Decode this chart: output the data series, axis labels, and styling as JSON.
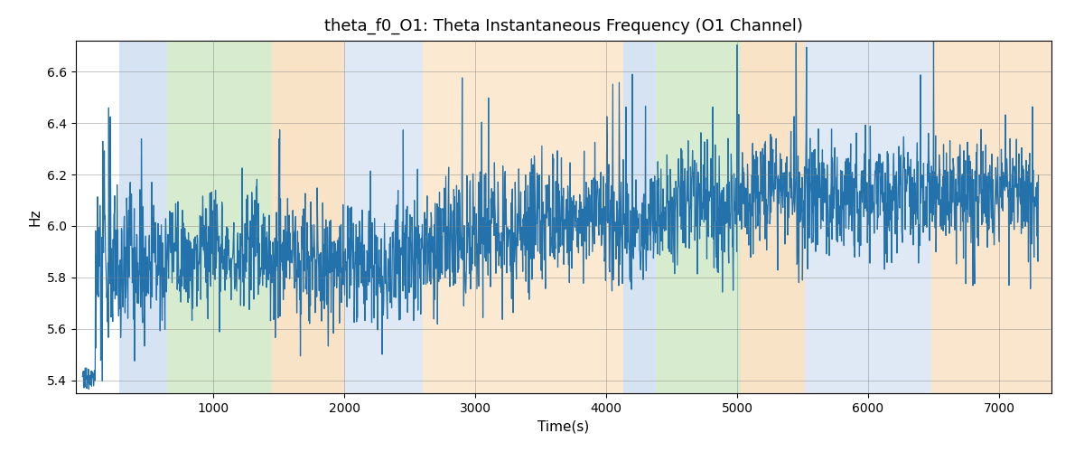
{
  "title": "theta_f0_O1: Theta Instantaneous Frequency (O1 Channel)",
  "xlabel": "Time(s)",
  "ylabel": "Hz",
  "xlim": [
    -50,
    7400
  ],
  "ylim": [
    5.35,
    6.72
  ],
  "line_color": "#2372ac",
  "line_width": 0.9,
  "background_color": "#ffffff",
  "grid": true,
  "figsize": [
    12,
    5
  ],
  "dpi": 100,
  "seed": 42,
  "n_points": 2400,
  "mean_freq": 6.0,
  "title_fontsize": 13,
  "label_fontsize": 11,
  "regions": [
    {
      "xmin": 280,
      "xmax": 650,
      "color": "#aec9e8",
      "alpha": 0.5
    },
    {
      "xmin": 650,
      "xmax": 1450,
      "color": "#b0d9a0",
      "alpha": 0.5
    },
    {
      "xmin": 1450,
      "xmax": 2000,
      "color": "#f5c990",
      "alpha": 0.5
    },
    {
      "xmin": 2000,
      "xmax": 2600,
      "color": "#aec9e8",
      "alpha": 0.4
    },
    {
      "xmin": 2600,
      "xmax": 4130,
      "color": "#f5c990",
      "alpha": 0.4
    },
    {
      "xmin": 4130,
      "xmax": 4380,
      "color": "#aec9e8",
      "alpha": 0.5
    },
    {
      "xmin": 4380,
      "xmax": 5030,
      "color": "#b0d9a0",
      "alpha": 0.5
    },
    {
      "xmin": 5030,
      "xmax": 5520,
      "color": "#f5c990",
      "alpha": 0.5
    },
    {
      "xmin": 5520,
      "xmax": 6480,
      "color": "#aec9e8",
      "alpha": 0.4
    },
    {
      "xmin": 6480,
      "xmax": 7400,
      "color": "#f5c990",
      "alpha": 0.45
    }
  ],
  "xticks": [
    1000,
    2000,
    3000,
    4000,
    5000,
    6000,
    7000
  ],
  "yticks": [
    5.4,
    5.6,
    5.8,
    6.0,
    6.2,
    6.4,
    6.6
  ]
}
